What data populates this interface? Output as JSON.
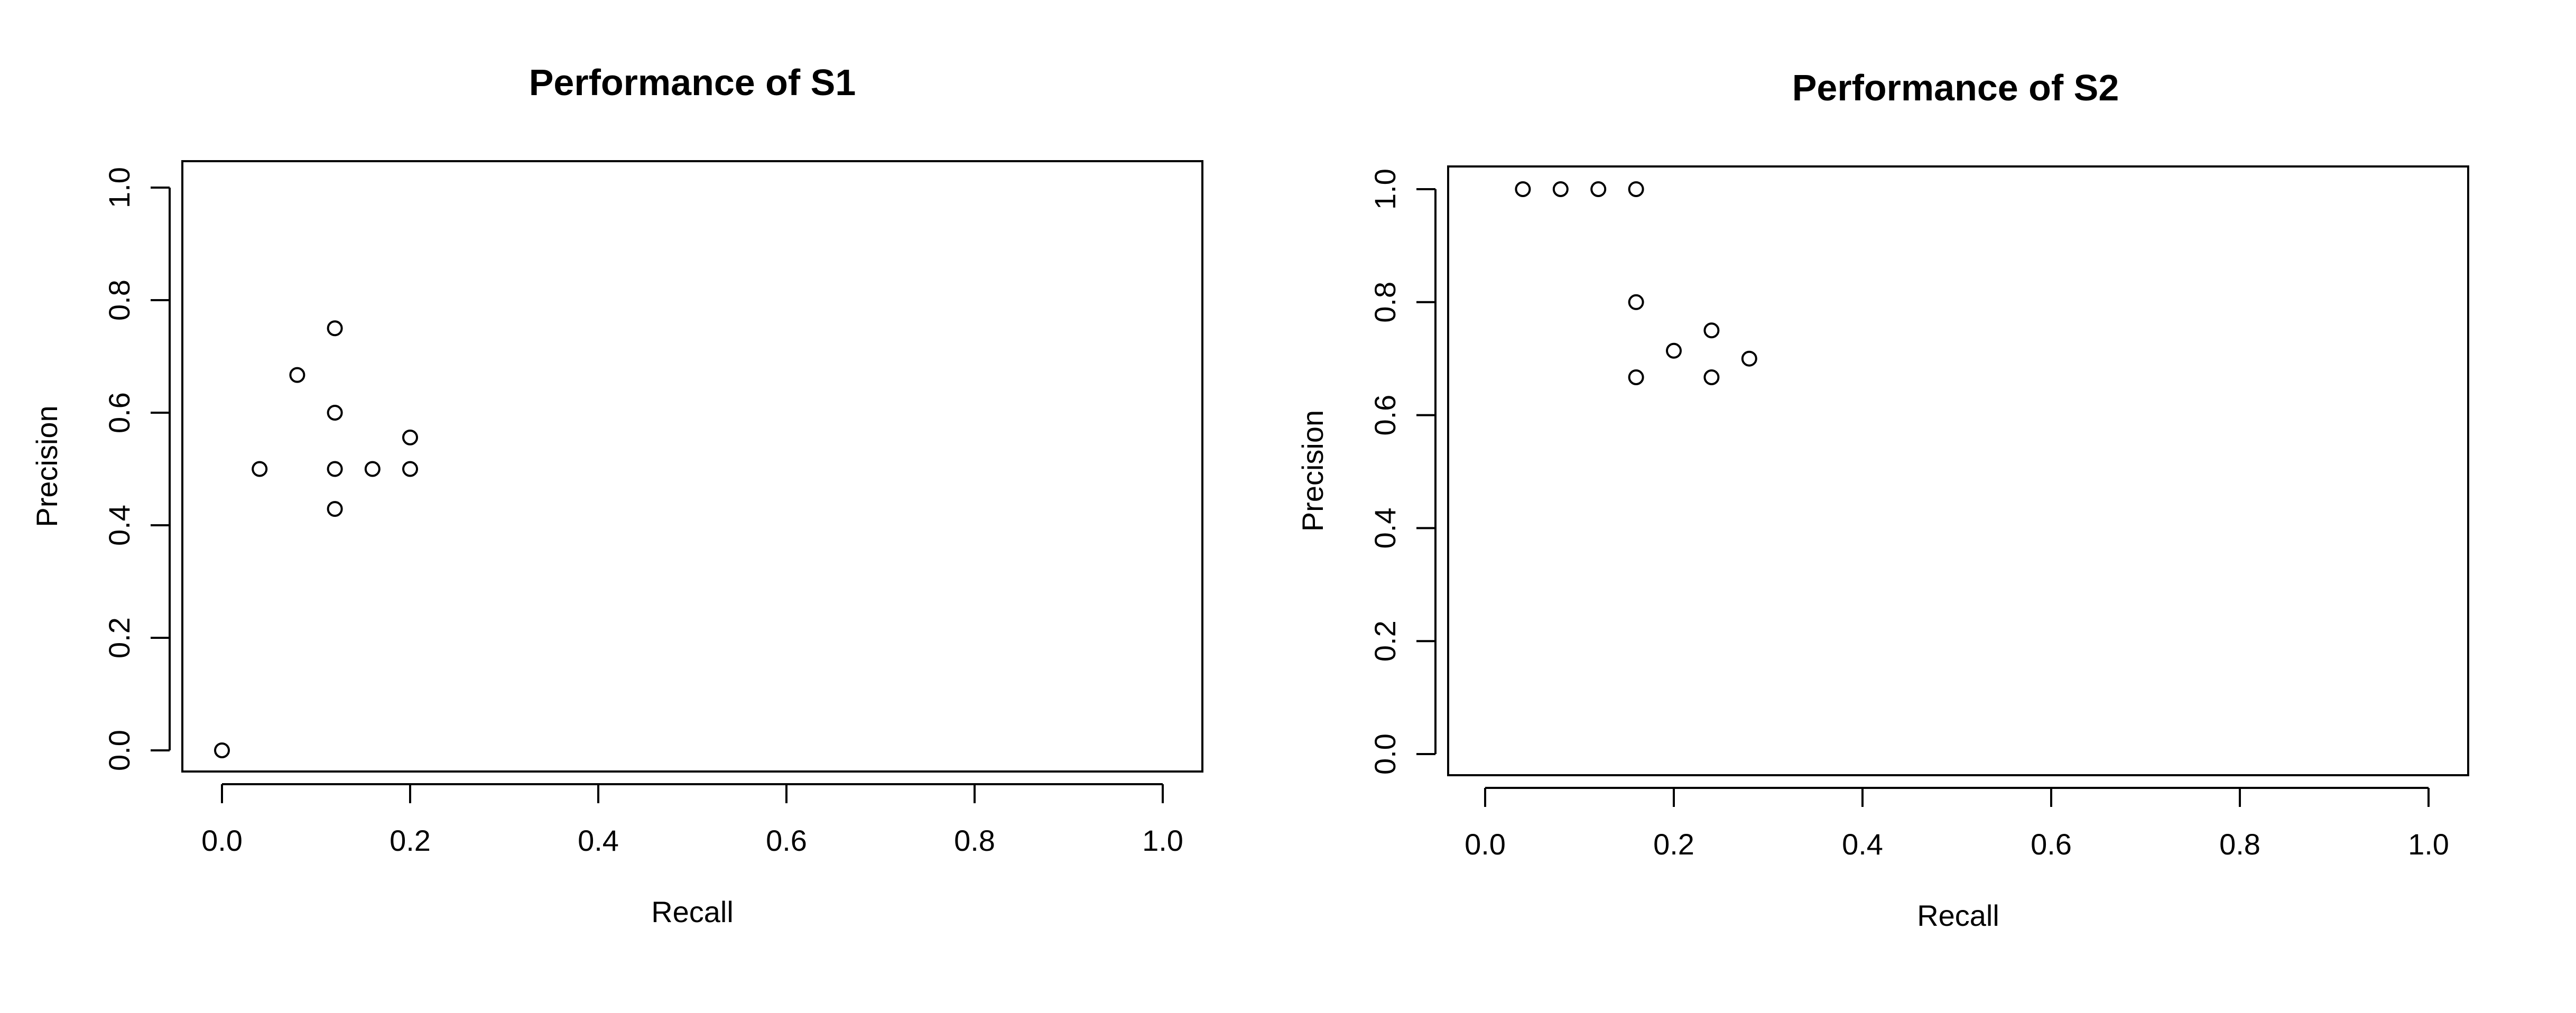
{
  "chart_data": [
    {
      "type": "scatter",
      "title": "Performance of S1",
      "xlabel": "Recall",
      "ylabel": "Precision",
      "xlim": [
        0.0,
        1.0
      ],
      "ylim": [
        0.0,
        1.0
      ],
      "xticks": [
        "0.0",
        "0.2",
        "0.4",
        "0.6",
        "0.8",
        "1.0"
      ],
      "yticks": [
        "0.0",
        "0.2",
        "0.4",
        "0.6",
        "0.8",
        "1.0"
      ],
      "marker": "open-circle",
      "grid": false,
      "points": [
        {
          "x": 0.0,
          "y": 0.0
        },
        {
          "x": 0.04,
          "y": 0.5
        },
        {
          "x": 0.08,
          "y": 0.667
        },
        {
          "x": 0.12,
          "y": 0.75
        },
        {
          "x": 0.12,
          "y": 0.6
        },
        {
          "x": 0.12,
          "y": 0.5
        },
        {
          "x": 0.12,
          "y": 0.429
        },
        {
          "x": 0.16,
          "y": 0.5
        },
        {
          "x": 0.2,
          "y": 0.556
        },
        {
          "x": 0.2,
          "y": 0.5
        }
      ]
    },
    {
      "type": "scatter",
      "title": "Performance of S2",
      "xlabel": "Recall",
      "ylabel": "Precision",
      "xlim": [
        0.0,
        1.0
      ],
      "ylim": [
        0.0,
        1.0
      ],
      "xticks": [
        "0.0",
        "0.2",
        "0.4",
        "0.6",
        "0.8",
        "1.0"
      ],
      "yticks": [
        "0.0",
        "0.2",
        "0.4",
        "0.6",
        "0.8",
        "1.0"
      ],
      "marker": "open-circle",
      "grid": false,
      "points": [
        {
          "x": 0.04,
          "y": 1.0
        },
        {
          "x": 0.08,
          "y": 1.0
        },
        {
          "x": 0.12,
          "y": 1.0
        },
        {
          "x": 0.16,
          "y": 1.0
        },
        {
          "x": 0.16,
          "y": 0.8
        },
        {
          "x": 0.16,
          "y": 0.667
        },
        {
          "x": 0.2,
          "y": 0.714
        },
        {
          "x": 0.24,
          "y": 0.75
        },
        {
          "x": 0.24,
          "y": 0.667
        },
        {
          "x": 0.28,
          "y": 0.7
        }
      ]
    }
  ]
}
